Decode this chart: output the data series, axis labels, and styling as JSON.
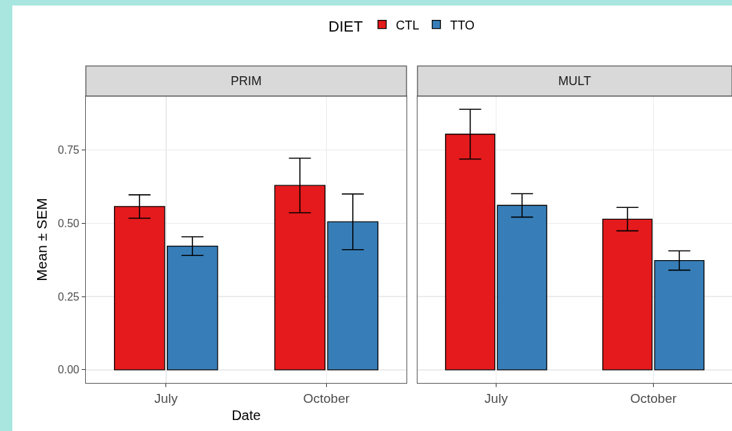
{
  "chart_data": [
    {
      "type": "bar",
      "title": "PRIM",
      "xlabel": "Date",
      "ylabel": "Mean ± SEM",
      "legend_title": "DIET",
      "legend": "top",
      "grid": true,
      "categories": [
        "July",
        "October"
      ],
      "ylim": [
        -0.045,
        0.934
      ],
      "yticks": [
        {
          "value": 0,
          "label": "0.00"
        },
        {
          "value": 0.25,
          "label": "0.25"
        },
        {
          "value": 0.5,
          "label": "0.50"
        },
        {
          "value": 0.75,
          "label": "0.75"
        }
      ],
      "series": [
        {
          "name": "CTL",
          "color": "#e41a1c",
          "values": [
            0.557,
            0.629
          ],
          "errors": [
            0.04,
            0.093
          ]
        },
        {
          "name": "TTO",
          "color": "#377eb8",
          "values": [
            0.422,
            0.505
          ],
          "errors": [
            0.032,
            0.095
          ]
        }
      ]
    },
    {
      "type": "bar",
      "title": "MULT",
      "grid": true,
      "tick_labels": "x",
      "categories": [
        "July",
        "October"
      ],
      "ylim": [
        -0.045,
        0.934
      ],
      "yticks": [
        {
          "value": 0,
          "label": null
        },
        {
          "value": 0.25,
          "label": null
        },
        {
          "value": 0.5,
          "label": null
        },
        {
          "value": 0.75,
          "label": null
        }
      ],
      "series": [
        {
          "color": "#e41a1c",
          "values": [
            0.804,
            0.514
          ],
          "errors": [
            0.085,
            0.04
          ]
        },
        {
          "color": "#377eb8",
          "values": [
            0.561,
            0.373
          ],
          "errors": [
            0.04,
            0.033
          ]
        }
      ]
    }
  ]
}
